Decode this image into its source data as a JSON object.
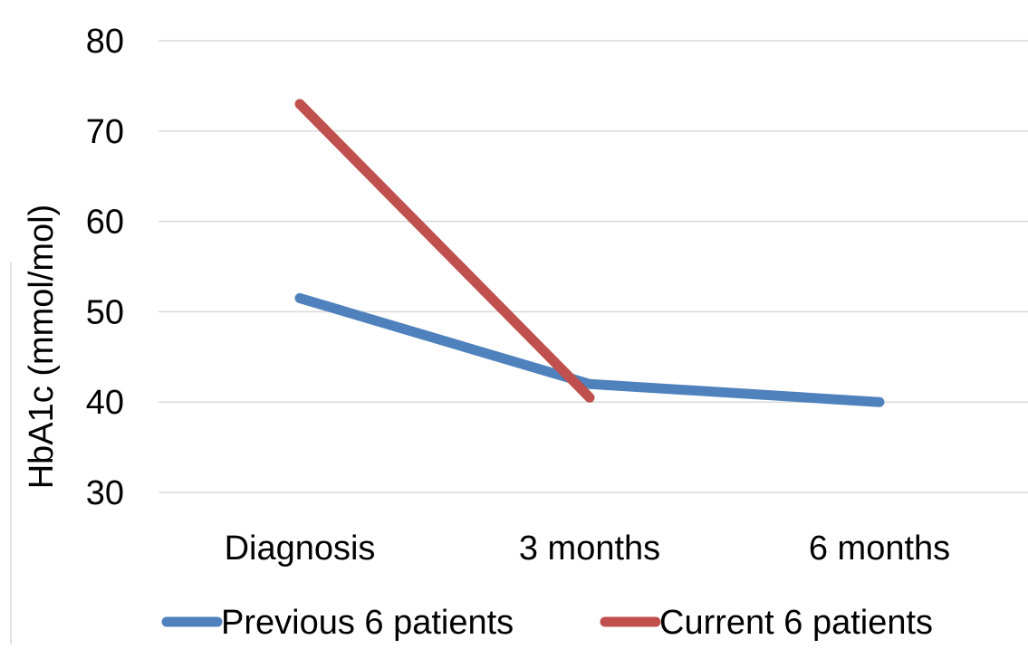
{
  "chart_data": {
    "type": "line",
    "title": "",
    "xlabel": "",
    "ylabel": "HbA1c (mmol/mol)",
    "ylim": [
      30,
      80
    ],
    "y_ticks": [
      30,
      40,
      50,
      60,
      70,
      80
    ],
    "categories": [
      "Diagnosis",
      "3 months",
      "6 months"
    ],
    "grid": true,
    "legend_position": "bottom",
    "series": [
      {
        "name": "Previous 6 patients",
        "color": "#4f81bd",
        "values": [
          51.5,
          42,
          40
        ]
      },
      {
        "name": "Current 6 patients",
        "color": "#c0504d",
        "values": [
          73,
          40.5,
          null
        ]
      }
    ]
  }
}
